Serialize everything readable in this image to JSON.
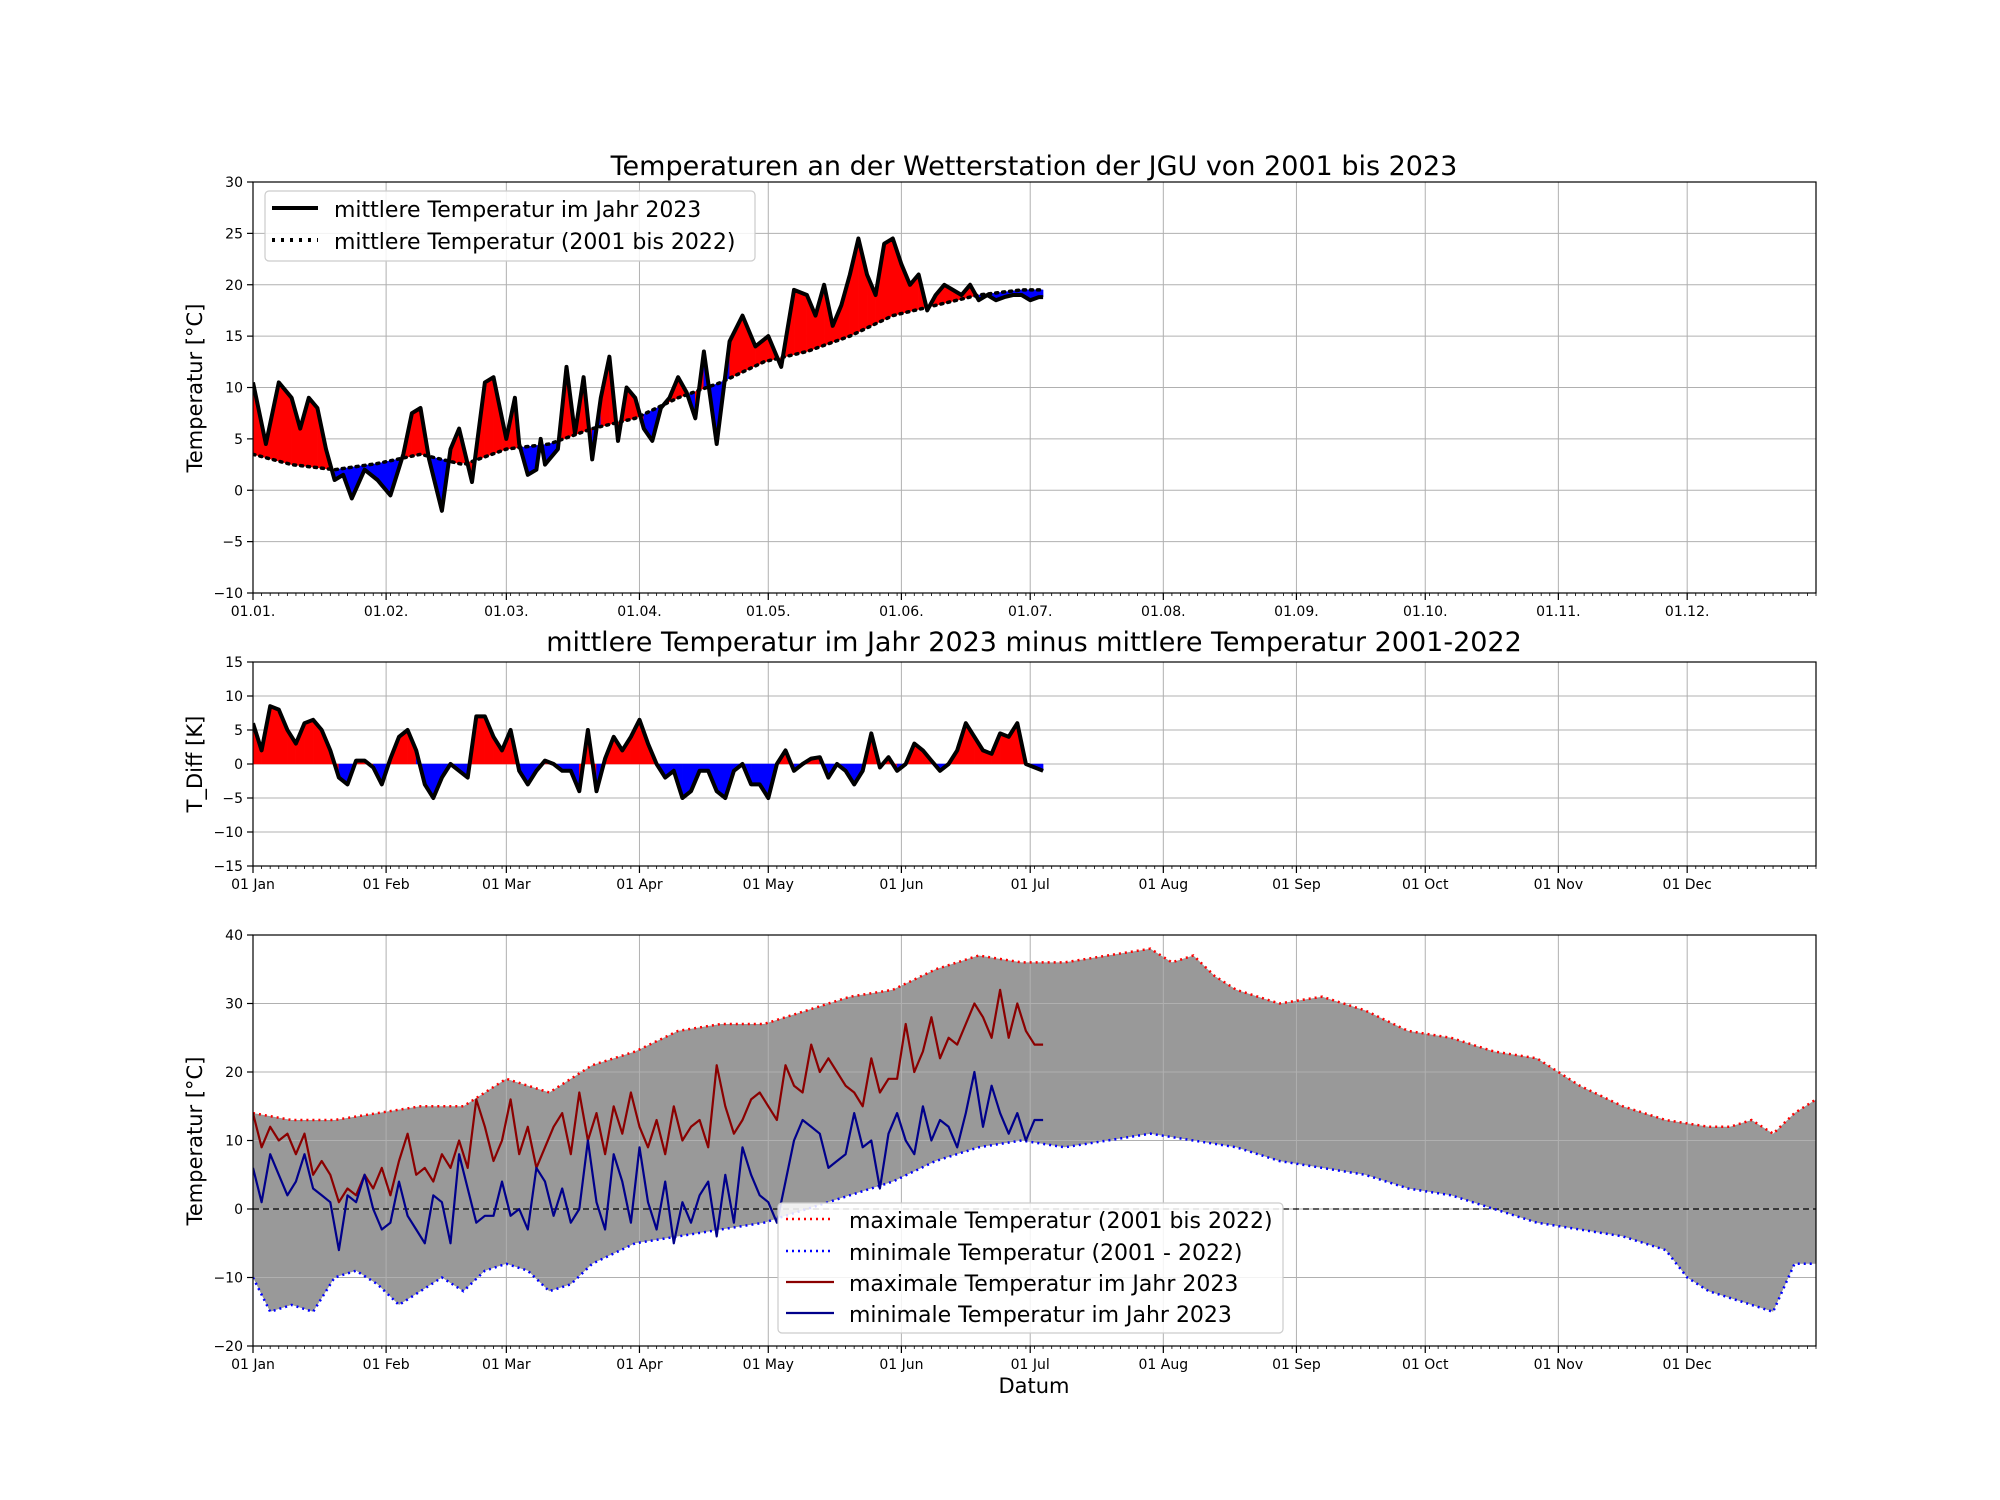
{
  "chart_data": [
    {
      "type": "line",
      "title": "Temperaturen an der Wetterstation der JGU von 2001 bis 2023",
      "xlabel": "",
      "ylabel": "Temperatur [°C]",
      "ylim": [
        -10,
        30
      ],
      "yticks": [
        "−10",
        "−5",
        "0",
        "5",
        "10",
        "15",
        "20",
        "25",
        "30"
      ],
      "xtick_labels": [
        "01.01.",
        "01.02.",
        "01.03.",
        "01.04.",
        "01.05.",
        "01.06.",
        "01.07.",
        "01.08.",
        "01.09.",
        "01.10.",
        "01.11.",
        "01.12."
      ],
      "grid": true,
      "legend_position": "top-left",
      "fill_colors": {
        "above": "#ff0000",
        "below": "#0000ff"
      },
      "series": [
        {
          "name": "mittlere Temperatur im Jahr 2023",
          "style": "solid",
          "color": "#000000",
          "x": [
            1,
            4,
            7,
            10,
            12,
            14,
            16,
            18,
            20,
            22,
            24,
            27,
            30,
            33,
            36,
            38,
            40,
            42,
            45,
            47,
            49,
            52,
            55,
            57,
            59,
            60,
            62,
            63,
            65,
            67,
            68,
            69,
            70,
            72,
            74,
            76,
            78,
            80,
            82,
            84,
            86,
            88,
            90,
            92,
            94,
            96,
            98,
            100,
            102,
            104,
            106,
            109,
            112,
            115,
            118,
            121,
            124,
            127,
            130,
            132,
            134,
            136,
            138,
            140,
            142,
            144,
            146,
            148,
            150,
            152,
            154,
            156,
            158,
            160,
            162,
            164,
            166,
            168,
            170,
            172,
            174,
            176,
            178,
            180,
            182,
            184,
            185
          ],
          "values": [
            10.5,
            4.5,
            10.5,
            9,
            6,
            9,
            8,
            4,
            1,
            1.5,
            -0.8,
            2,
            1,
            -0.5,
            3.5,
            7.5,
            8,
            3,
            -2,
            4,
            6,
            0.8,
            10.5,
            11,
            7,
            5,
            9,
            4.5,
            1.5,
            2,
            5,
            2.5,
            3,
            4,
            12,
            5.5,
            11,
            3,
            9,
            13,
            4.8,
            10,
            9,
            6,
            4.8,
            8,
            9,
            11,
            9.5,
            7,
            13.5,
            4.5,
            14.5,
            17,
            14,
            15,
            12,
            19.5,
            19,
            17,
            20,
            16,
            18,
            21,
            24.5,
            21,
            19,
            24,
            24.5,
            22,
            20,
            21,
            17.5,
            19,
            20,
            19.5,
            19,
            20,
            18.5,
            19,
            18.5,
            18.8,
            19,
            19,
            18.5,
            18.8,
            18.8
          ]
        },
        {
          "name": "mittlere Temperatur (2001 bis 2022)",
          "style": "dotted",
          "color": "#000000",
          "x": [
            1,
            10,
            20,
            30,
            40,
            50,
            60,
            70,
            80,
            90,
            100,
            110,
            120,
            130,
            140,
            150,
            160,
            170,
            180,
            185
          ],
          "values": [
            3.5,
            2.5,
            2.0,
            2.6,
            3.5,
            2.5,
            4.0,
            4.5,
            6.0,
            7.0,
            9.0,
            10.5,
            12.5,
            13.5,
            15.0,
            17.0,
            18.0,
            19.0,
            19.5,
            19.5
          ]
        }
      ]
    },
    {
      "type": "area",
      "title": "mittlere Temperatur im Jahr 2023 minus mittlere Temperatur 2001-2022",
      "xlabel": "",
      "ylabel": "T_Diff [K]",
      "ylim": [
        -15,
        15
      ],
      "yticks": [
        "−15",
        "−10",
        "−5",
        "0",
        "5",
        "10",
        "15"
      ],
      "xtick_labels": [
        "01 Jan",
        "01 Feb",
        "01 Mar",
        "01 Apr",
        "01 May",
        "01 Jun",
        "01 Jul",
        "01 Aug",
        "01 Sep",
        "01 Oct",
        "01 Nov",
        "01 Dec"
      ],
      "grid": true,
      "fill_colors": {
        "above": "#ff0000",
        "below": "#0000ff"
      },
      "series": [
        {
          "name": "",
          "color": "#000000",
          "x": [
            1,
            3,
            5,
            7,
            9,
            11,
            13,
            15,
            17,
            19,
            21,
            23,
            25,
            27,
            29,
            31,
            33,
            35,
            37,
            39,
            41,
            43,
            45,
            47,
            49,
            51,
            53,
            55,
            57,
            59,
            61,
            63,
            65,
            67,
            69,
            71,
            73,
            75,
            77,
            79,
            81,
            83,
            85,
            87,
            89,
            91,
            93,
            95,
            97,
            99,
            101,
            103,
            105,
            107,
            109,
            111,
            113,
            115,
            117,
            119,
            121,
            123,
            125,
            127,
            129,
            131,
            133,
            135,
            137,
            139,
            141,
            143,
            145,
            147,
            149,
            151,
            153,
            155,
            157,
            159,
            161,
            163,
            165,
            167,
            169,
            171,
            173,
            175,
            177,
            179,
            181,
            183,
            185
          ],
          "values": [
            6,
            2,
            8.5,
            8,
            5,
            3,
            6,
            6.5,
            5,
            2,
            -2,
            -3,
            0.5,
            0.5,
            -0.5,
            -3,
            0.8,
            4,
            5,
            2,
            -3,
            -5,
            -2,
            0,
            -1,
            -2,
            7,
            7,
            4,
            2,
            5,
            -1,
            -3,
            -1,
            0.5,
            0,
            -1,
            -1,
            -4,
            5,
            -4,
            0.8,
            4,
            2,
            4,
            6.5,
            3,
            0,
            -2,
            -1,
            -5,
            -4,
            -1,
            -1,
            -4,
            -5,
            -1,
            0,
            -3,
            -3,
            -5,
            0,
            2,
            -1,
            0,
            0.8,
            1,
            -2,
            0,
            -1,
            -3,
            -1,
            4.5,
            -0.5,
            1,
            -1,
            0,
            3,
            2,
            0.5,
            -1,
            0,
            2,
            6,
            4,
            2,
            1.5,
            4.5,
            4,
            6,
            0,
            -0.5,
            -1
          ]
        }
      ]
    },
    {
      "type": "line",
      "title": "",
      "xlabel": "Datum",
      "ylabel": "Temperatur [°C]",
      "ylim": [
        -20,
        40
      ],
      "yticks": [
        "−20",
        "−10",
        "0",
        "10",
        "20",
        "30",
        "40"
      ],
      "xtick_labels": [
        "01 Jan",
        "01 Feb",
        "01 Mar",
        "01 Apr",
        "01 May",
        "01 Jun",
        "01 Jul",
        "01 Aug",
        "01 Sep",
        "01 Oct",
        "01 Nov",
        "01 Dec"
      ],
      "grid": true,
      "legend_position": "lower-center",
      "band_color": "#999999",
      "zero_line": "dashed",
      "series": [
        {
          "name": "maximale Temperatur (2001 bis 2022)",
          "style": "dotted",
          "color": "#ff0000",
          "x": [
            1,
            10,
            20,
            30,
            40,
            50,
            55,
            60,
            70,
            80,
            90,
            100,
            110,
            120,
            130,
            140,
            150,
            160,
            170,
            180,
            190,
            200,
            210,
            215,
            220,
            225,
            230,
            240,
            250,
            260,
            270,
            280,
            290,
            300,
            310,
            320,
            330,
            340,
            345,
            350,
            355,
            360,
            365
          ],
          "values": [
            14,
            13,
            13,
            14,
            15,
            15,
            17,
            19,
            17,
            21,
            23,
            26,
            27,
            27,
            29,
            31,
            32,
            35,
            37,
            36,
            36,
            37,
            38,
            36,
            37,
            34,
            32,
            30,
            31,
            29,
            26,
            25,
            23,
            22,
            18,
            15,
            13,
            12,
            12,
            13,
            11,
            14,
            16
          ]
        },
        {
          "name": "minimale Temperatur (2001 - 2022)",
          "style": "dotted",
          "color": "#0000ff",
          "x": [
            1,
            5,
            10,
            15,
            20,
            25,
            30,
            35,
            40,
            45,
            50,
            55,
            60,
            65,
            70,
            75,
            80,
            90,
            100,
            110,
            120,
            130,
            140,
            150,
            160,
            170,
            180,
            190,
            200,
            210,
            220,
            230,
            240,
            250,
            260,
            270,
            280,
            290,
            300,
            310,
            320,
            330,
            335,
            340,
            345,
            350,
            355,
            360,
            365
          ],
          "values": [
            -10,
            -15,
            -14,
            -15,
            -10,
            -9,
            -11,
            -14,
            -12,
            -10,
            -12,
            -9,
            -8,
            -9,
            -12,
            -11,
            -8,
            -5,
            -4,
            -3,
            -2,
            0,
            2,
            4,
            7,
            9,
            10,
            9,
            10,
            11,
            10,
            9,
            7,
            6,
            5,
            3,
            2,
            0,
            -2,
            -3,
            -4,
            -6,
            -10,
            -12,
            -13,
            -14,
            -15,
            -8,
            -8
          ]
        },
        {
          "name": "maximale Temperatur im Jahr 2023",
          "style": "solid",
          "color": "#8b0000",
          "x": [
            1,
            3,
            5,
            7,
            9,
            11,
            13,
            15,
            17,
            19,
            21,
            23,
            25,
            27,
            29,
            31,
            33,
            35,
            37,
            39,
            41,
            43,
            45,
            47,
            49,
            51,
            53,
            55,
            57,
            59,
            61,
            63,
            65,
            67,
            69,
            71,
            73,
            75,
            77,
            79,
            81,
            83,
            85,
            87,
            89,
            91,
            93,
            95,
            97,
            99,
            101,
            103,
            105,
            107,
            109,
            111,
            113,
            115,
            117,
            119,
            121,
            123,
            125,
            127,
            129,
            131,
            133,
            135,
            137,
            139,
            141,
            143,
            145,
            147,
            149,
            151,
            153,
            155,
            157,
            159,
            161,
            163,
            165,
            167,
            169,
            171,
            173,
            175,
            177,
            179,
            181,
            183,
            185
          ],
          "values": [
            14,
            9,
            12,
            10,
            11,
            8,
            11,
            5,
            7,
            5,
            1,
            3,
            2,
            5,
            3,
            6,
            2,
            7,
            11,
            5,
            6,
            4,
            8,
            6,
            10,
            6,
            16,
            12,
            7,
            10,
            16,
            8,
            12,
            6,
            9,
            12,
            14,
            8,
            17,
            10,
            14,
            8,
            15,
            11,
            17,
            12,
            9,
            13,
            8,
            15,
            10,
            12,
            13,
            9,
            21,
            15,
            11,
            13,
            16,
            17,
            15,
            13,
            21,
            18,
            17,
            24,
            20,
            22,
            20,
            18,
            17,
            15,
            22,
            17,
            19,
            19,
            27,
            20,
            23,
            28,
            22,
            25,
            24,
            27,
            30,
            28,
            25,
            32,
            25,
            30,
            26,
            24,
            24
          ]
        },
        {
          "name": "minimale Temperatur im Jahr 2023",
          "style": "solid",
          "color": "#00008b",
          "x": [
            1,
            3,
            5,
            7,
            9,
            11,
            13,
            15,
            17,
            19,
            21,
            23,
            25,
            27,
            29,
            31,
            33,
            35,
            37,
            39,
            41,
            43,
            45,
            47,
            49,
            51,
            53,
            55,
            57,
            59,
            61,
            63,
            65,
            67,
            69,
            71,
            73,
            75,
            77,
            79,
            81,
            83,
            85,
            87,
            89,
            91,
            93,
            95,
            97,
            99,
            101,
            103,
            105,
            107,
            109,
            111,
            113,
            115,
            117,
            119,
            121,
            123,
            125,
            127,
            129,
            131,
            133,
            135,
            137,
            139,
            141,
            143,
            145,
            147,
            149,
            151,
            153,
            155,
            157,
            159,
            161,
            163,
            165,
            167,
            169,
            171,
            173,
            175,
            177,
            179,
            181,
            183,
            185
          ],
          "values": [
            6,
            1,
            8,
            5,
            2,
            4,
            8,
            3,
            2,
            1,
            -6,
            2,
            1,
            5,
            0,
            -3,
            -2,
            4,
            -1,
            -3,
            -5,
            2,
            1,
            -5,
            8,
            3,
            -2,
            -1,
            -1,
            4,
            -1,
            0,
            -3,
            6,
            4,
            -1,
            3,
            -2,
            0,
            10,
            1,
            -3,
            8,
            4,
            -2,
            9,
            1,
            -3,
            4,
            -5,
            1,
            -2,
            2,
            4,
            -4,
            5,
            -2,
            9,
            5,
            2,
            1,
            -2,
            4,
            10,
            13,
            12,
            11,
            6,
            7,
            8,
            14,
            9,
            10,
            3,
            11,
            14,
            10,
            8,
            15,
            10,
            13,
            12,
            9,
            14,
            20,
            12,
            18,
            14,
            11,
            14,
            10,
            13,
            13
          ]
        }
      ]
    }
  ]
}
